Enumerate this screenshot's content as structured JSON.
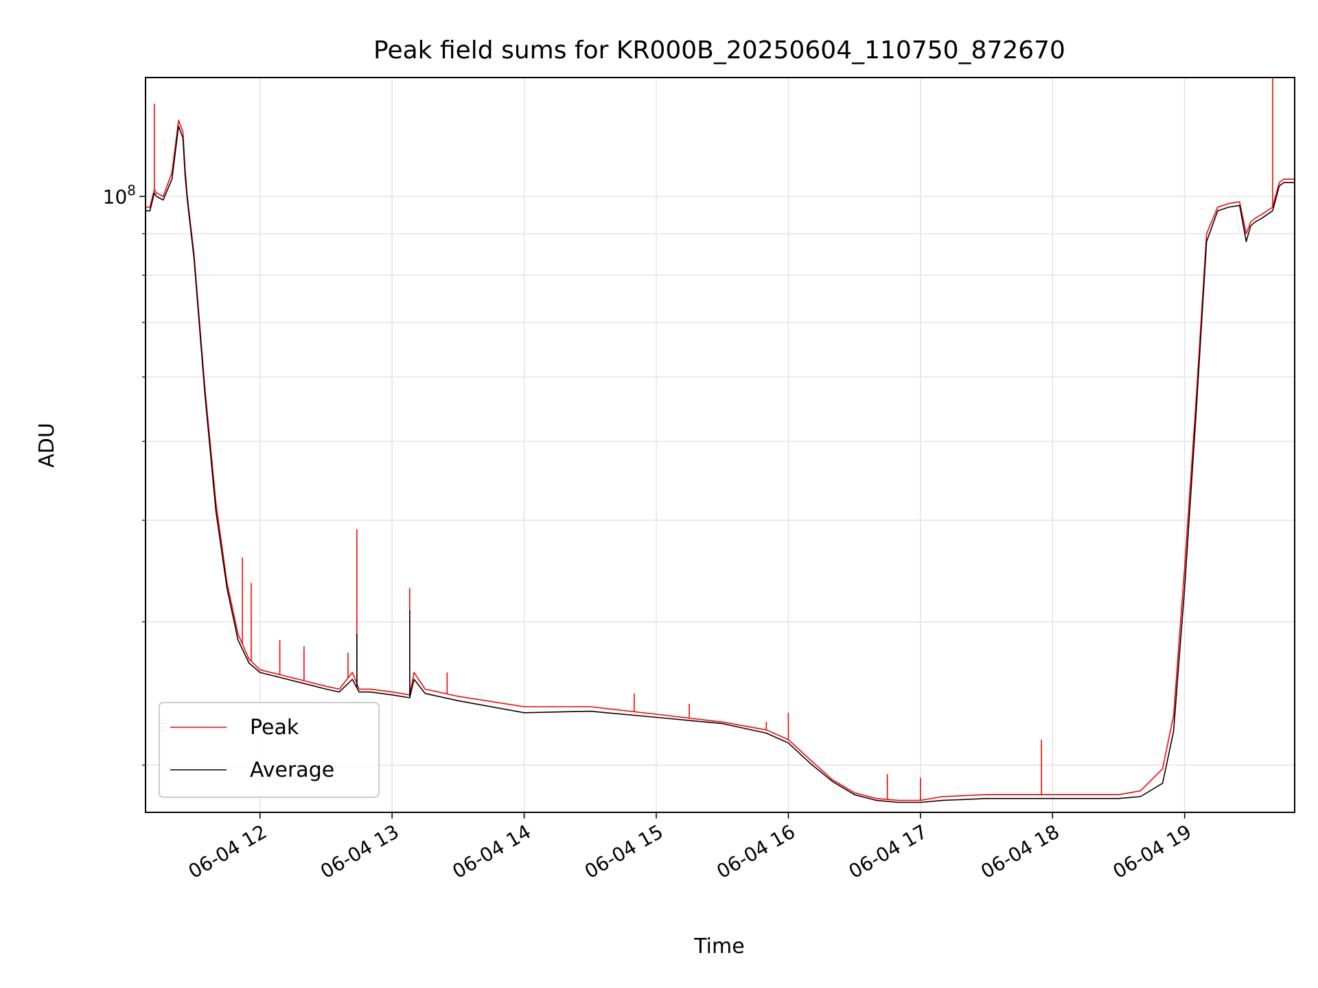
{
  "chart_data": {
    "type": "line",
    "title": "Peak field sums for KR000B_20250604_110750_872670",
    "xlabel": "Time",
    "ylabel": "ADU",
    "yscale": "log",
    "x_tick_labels": [
      "06-04 12",
      "06-04 13",
      "06-04 14",
      "06-04 15",
      "06-04 16",
      "06-04 17",
      "06-04 18",
      "06-04 19"
    ],
    "x_ticks": [
      "2025-06-04 12:00",
      "2025-06-04 13:00",
      "2025-06-04 14:00",
      "2025-06-04 15:00",
      "2025-06-04 16:00",
      "2025-06-04 17:00",
      "2025-06-04 18:00",
      "2025-06-04 19:00"
    ],
    "xlim": [
      "2025-06-04 11:08",
      "2025-06-04 19:50"
    ],
    "y_tick_label_base": "10",
    "y_tick_label_exp": "8",
    "y_major_ticks": [
      100000000
    ],
    "y_minor_ticks": [
      20000000,
      30000000,
      40000000,
      50000000,
      60000000,
      70000000,
      80000000,
      90000000
    ],
    "ylim": [
      17500000,
      140000000
    ],
    "grid": true,
    "legend_position": "lower-left",
    "series": [
      {
        "name": "Peak",
        "color": "#ff0000",
        "x": [
          "2025-06-04 11:08",
          "2025-06-04 11:10",
          "2025-06-04 11:12",
          "2025-06-04 11:13",
          "2025-06-04 11:16",
          "2025-06-04 11:20",
          "2025-06-04 11:23",
          "2025-06-04 11:25",
          "2025-06-04 11:26",
          "2025-06-04 11:27",
          "2025-06-04 11:30",
          "2025-06-04 11:35",
          "2025-06-04 11:40",
          "2025-06-04 11:45",
          "2025-06-04 11:50",
          "2025-06-04 11:55",
          "2025-06-04 12:00",
          "2025-06-04 12:10",
          "2025-06-04 12:20",
          "2025-06-04 12:30",
          "2025-06-04 12:36",
          "2025-06-04 12:42",
          "2025-06-04 12:45",
          "2025-06-04 12:50",
          "2025-06-04 13:00",
          "2025-06-04 13:08",
          "2025-06-04 13:10",
          "2025-06-04 13:15",
          "2025-06-04 13:30",
          "2025-06-04 14:00",
          "2025-06-04 14:30",
          "2025-06-04 15:00",
          "2025-06-04 15:30",
          "2025-06-04 15:50",
          "2025-06-04 16:00",
          "2025-06-04 16:10",
          "2025-06-04 16:20",
          "2025-06-04 16:30",
          "2025-06-04 16:40",
          "2025-06-04 16:50",
          "2025-06-04 17:00",
          "2025-06-04 17:10",
          "2025-06-04 17:30",
          "2025-06-04 18:00",
          "2025-06-04 18:30",
          "2025-06-04 18:40",
          "2025-06-04 18:50",
          "2025-06-04 18:55",
          "2025-06-04 19:00",
          "2025-06-04 19:05",
          "2025-06-04 19:10",
          "2025-06-04 19:15",
          "2025-06-04 19:20",
          "2025-06-04 19:25",
          "2025-06-04 19:28",
          "2025-06-04 19:30",
          "2025-06-04 19:32",
          "2025-06-04 19:35",
          "2025-06-04 19:40",
          "2025-06-04 19:43",
          "2025-06-04 19:45",
          "2025-06-04 19:50"
        ],
        "y": [
          97000000,
          97000000,
          102000000,
          101000000,
          100000000,
          107000000,
          124000000,
          120000000,
          108000000,
          100000000,
          85000000,
          58000000,
          42000000,
          33500000,
          29000000,
          27000000,
          26200000,
          25800000,
          25400000,
          25000000,
          24800000,
          26000000,
          24800000,
          24800000,
          24600000,
          24400000,
          26000000,
          24800000,
          24300000,
          23600000,
          23600000,
          23100000,
          22600000,
          22100000,
          21500000,
          20300000,
          19200000,
          18500000,
          18200000,
          18100000,
          18100000,
          18300000,
          18400000,
          18400000,
          18400000,
          18600000,
          19800000,
          23000000,
          35000000,
          55000000,
          90000000,
          97000000,
          98000000,
          98500000,
          90000000,
          93000000,
          94000000,
          95000000,
          97000000,
          104000000,
          105000000,
          105000000
        ],
        "spikes": [
          {
            "x": "2025-06-04 11:12",
            "y": 130000000
          },
          {
            "x": "2025-06-04 11:52",
            "y": 36000000
          },
          {
            "x": "2025-06-04 11:56",
            "y": 33500000
          },
          {
            "x": "2025-06-04 12:09",
            "y": 28500000
          },
          {
            "x": "2025-06-04 12:20",
            "y": 28000000
          },
          {
            "x": "2025-06-04 12:40",
            "y": 27500000
          },
          {
            "x": "2025-06-04 12:44",
            "y": 39000000
          },
          {
            "x": "2025-06-04 13:08",
            "y": 33000000
          },
          {
            "x": "2025-06-04 13:25",
            "y": 26000000
          },
          {
            "x": "2025-06-04 14:50",
            "y": 24500000
          },
          {
            "x": "2025-06-04 15:15",
            "y": 23800000
          },
          {
            "x": "2025-06-04 15:50",
            "y": 22600000
          },
          {
            "x": "2025-06-04 16:00",
            "y": 23200000
          },
          {
            "x": "2025-06-04 16:45",
            "y": 19500000
          },
          {
            "x": "2025-06-04 17:00",
            "y": 19300000
          },
          {
            "x": "2025-06-04 17:55",
            "y": 21500000
          },
          {
            "x": "2025-06-04 19:40",
            "y": 140000000
          }
        ]
      },
      {
        "name": "Average",
        "color": "#000000",
        "x": [
          "2025-06-04 11:08",
          "2025-06-04 11:10",
          "2025-06-04 11:12",
          "2025-06-04 11:13",
          "2025-06-04 11:16",
          "2025-06-04 11:20",
          "2025-06-04 11:23",
          "2025-06-04 11:25",
          "2025-06-04 11:26",
          "2025-06-04 11:27",
          "2025-06-04 11:30",
          "2025-06-04 11:35",
          "2025-06-04 11:40",
          "2025-06-04 11:45",
          "2025-06-04 11:50",
          "2025-06-04 11:55",
          "2025-06-04 12:00",
          "2025-06-04 12:10",
          "2025-06-04 12:20",
          "2025-06-04 12:30",
          "2025-06-04 12:36",
          "2025-06-04 12:42",
          "2025-06-04 12:45",
          "2025-06-04 12:50",
          "2025-06-04 13:00",
          "2025-06-04 13:08",
          "2025-06-04 13:10",
          "2025-06-04 13:15",
          "2025-06-04 13:30",
          "2025-06-04 14:00",
          "2025-06-04 14:30",
          "2025-06-04 15:00",
          "2025-06-04 15:30",
          "2025-06-04 15:50",
          "2025-06-04 16:00",
          "2025-06-04 16:10",
          "2025-06-04 16:20",
          "2025-06-04 16:30",
          "2025-06-04 16:40",
          "2025-06-04 16:50",
          "2025-06-04 17:00",
          "2025-06-04 17:10",
          "2025-06-04 17:30",
          "2025-06-04 18:00",
          "2025-06-04 18:30",
          "2025-06-04 18:40",
          "2025-06-04 18:50",
          "2025-06-04 18:55",
          "2025-06-04 19:00",
          "2025-06-04 19:05",
          "2025-06-04 19:10",
          "2025-06-04 19:15",
          "2025-06-04 19:20",
          "2025-06-04 19:25",
          "2025-06-04 19:28",
          "2025-06-04 19:30",
          "2025-06-04 19:32",
          "2025-06-04 19:35",
          "2025-06-04 19:40",
          "2025-06-04 19:43",
          "2025-06-04 19:45",
          "2025-06-04 19:50"
        ],
        "y": [
          96000000,
          96000000,
          101000000,
          100000000,
          99000000,
          105000000,
          122000000,
          118000000,
          106000000,
          99000000,
          84000000,
          57000000,
          41000000,
          33000000,
          28500000,
          26700000,
          26000000,
          25600000,
          25200000,
          24800000,
          24600000,
          25500000,
          24600000,
          24600000,
          24400000,
          24200000,
          25500000,
          24500000,
          24000000,
          23200000,
          23300000,
          22900000,
          22500000,
          21900000,
          21300000,
          20100000,
          19100000,
          18400000,
          18100000,
          18000000,
          18000000,
          18100000,
          18200000,
          18200000,
          18200000,
          18300000,
          19000000,
          22000000,
          33000000,
          53000000,
          88000000,
          96000000,
          97000000,
          97500000,
          88000000,
          92000000,
          93000000,
          94000000,
          96000000,
          103000000,
          104000000,
          104000000
        ],
        "spikes": [
          {
            "x": "2025-06-04 12:44",
            "y": 29000000
          },
          {
            "x": "2025-06-04 13:08",
            "y": 31000000
          }
        ]
      }
    ]
  }
}
